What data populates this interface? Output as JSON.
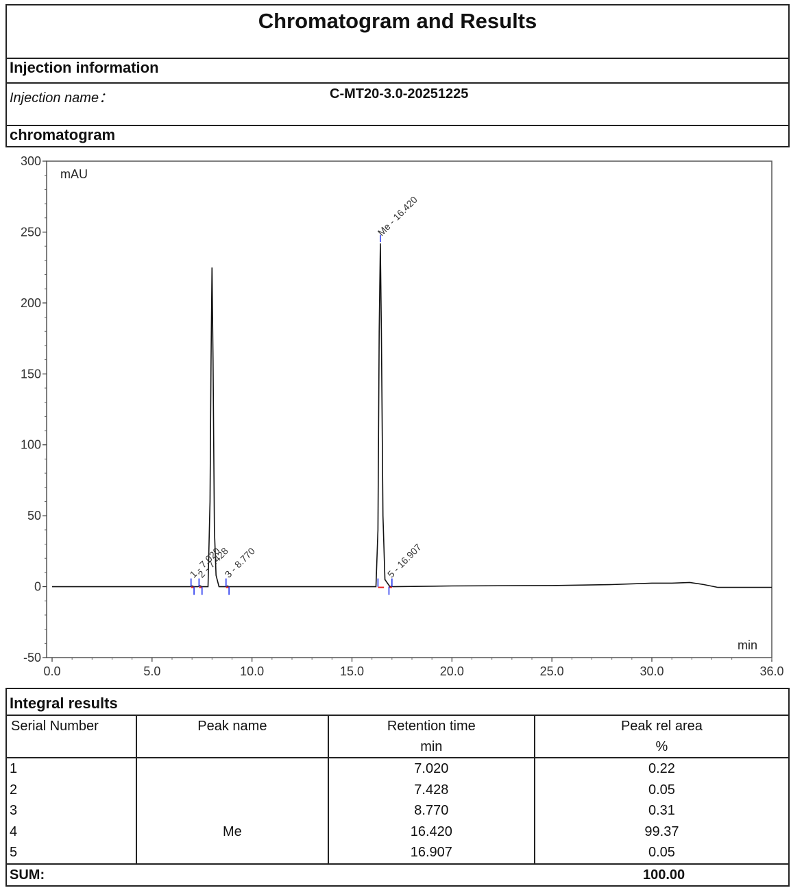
{
  "title": "Chromatogram and Results",
  "injection": {
    "section_label": "Injection information",
    "name_label": "Injection name：",
    "name_value": "C-MT20-3.0-20251225"
  },
  "chromatogram_label": "chromatogram",
  "chart_data": {
    "type": "line",
    "ylabel": "mAU",
    "xlabel": "min",
    "xlim": [
      0,
      36
    ],
    "ylim": [
      -50,
      300
    ],
    "x_ticks": [
      "0.0",
      "5.0",
      "10.0",
      "15.0",
      "20.0",
      "25.0",
      "30.0",
      "36.0"
    ],
    "x_tick_values": [
      0,
      5,
      10,
      15,
      20,
      25,
      30,
      36
    ],
    "y_ticks": [
      "300",
      "250",
      "200",
      "150",
      "100",
      "50",
      "0",
      "-50"
    ],
    "y_tick_values": [
      300,
      250,
      200,
      150,
      100,
      50,
      0,
      -50
    ],
    "series": [
      {
        "x": [
          0,
          2,
          6.9,
          7.0,
          7.1,
          7.3,
          7.4,
          7.5,
          7.8,
          7.9,
          7.95,
          8.0,
          8.05,
          8.12,
          8.2,
          8.35,
          8.7,
          8.77,
          8.85,
          10,
          14,
          16.2,
          16.3,
          16.36,
          16.42,
          16.47,
          16.55,
          16.65,
          16.9,
          16.95,
          17.05,
          20,
          25,
          28,
          30,
          31,
          31.9,
          32.6,
          33.3,
          36
        ],
        "y": [
          0,
          0,
          0,
          0.5,
          0,
          0,
          0.6,
          0,
          0,
          60,
          160,
          225,
          160,
          40,
          8,
          0,
          0,
          0.5,
          0,
          0,
          0,
          0,
          40,
          180,
          242,
          180,
          50,
          5,
          0,
          0.3,
          0,
          0.5,
          0.8,
          1.5,
          2.5,
          2.5,
          3,
          1.5,
          -0.5,
          -0.5
        ]
      }
    ],
    "peak_annotations": [
      {
        "label": "1 - 7.020",
        "x": 7.02,
        "y": 1
      },
      {
        "label": "2 - 7.428",
        "x": 7.428,
        "y": 1
      },
      {
        "label": "3 - 8.770",
        "x": 8.77,
        "y": 1
      },
      {
        "label": "Me - 16.420",
        "x": 16.42,
        "y": 242
      },
      {
        "label": "5 - 16.907",
        "x": 16.907,
        "y": 1
      }
    ],
    "line_color": "#111111",
    "marker_color": "#2233ee",
    "baseline_color": "#e82020"
  },
  "integral": {
    "section_label": "Integral results",
    "headers": {
      "serial": "Serial Number",
      "peak_name": "Peak name",
      "rt": "Retention time",
      "rt_unit": "min",
      "area": "Peak rel area",
      "area_unit": "%"
    },
    "rows": [
      {
        "serial": "1",
        "name": "",
        "rt": "7.020",
        "area": "0.22"
      },
      {
        "serial": "2",
        "name": "",
        "rt": "7.428",
        "area": "0.05"
      },
      {
        "serial": "3",
        "name": "",
        "rt": "8.770",
        "area": "0.31"
      },
      {
        "serial": "4",
        "name": "Me",
        "rt": "16.420",
        "area": "99.37"
      },
      {
        "serial": "5",
        "name": "",
        "rt": "16.907",
        "area": "0.05"
      }
    ],
    "sum_label": "SUM:",
    "sum_value": "100.00"
  }
}
